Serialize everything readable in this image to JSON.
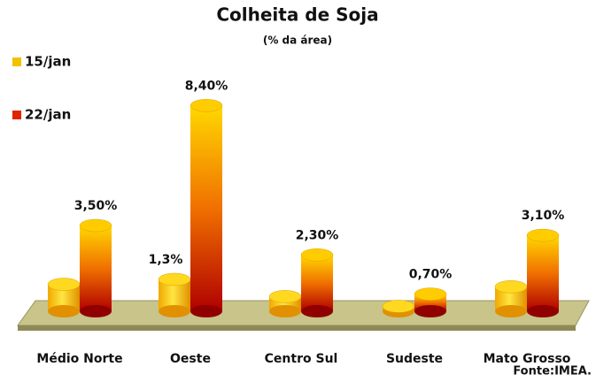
{
  "chart_data": {
    "type": "bar",
    "title": "Colheita de Soja",
    "subtitle": "(% da área)",
    "categories": [
      "Médio Norte",
      "Oeste",
      "Centro Sul",
      "Sudeste",
      "Mato Grosso"
    ],
    "series": [
      {
        "name": "15/jan",
        "color": "#f2c200",
        "values": [
          1.1,
          1.3,
          0.6,
          0.2,
          1.0
        ],
        "value_labels": [
          null,
          "1,3%",
          null,
          null,
          null
        ]
      },
      {
        "name": "22/jan",
        "color": "#e02400",
        "values": [
          3.5,
          8.4,
          2.3,
          0.7,
          3.1
        ],
        "value_labels": [
          "3,50%",
          "8,40%",
          "2,30%",
          "0,70%",
          "3,10%"
        ]
      }
    ],
    "source": "Fonte:IMEA."
  }
}
